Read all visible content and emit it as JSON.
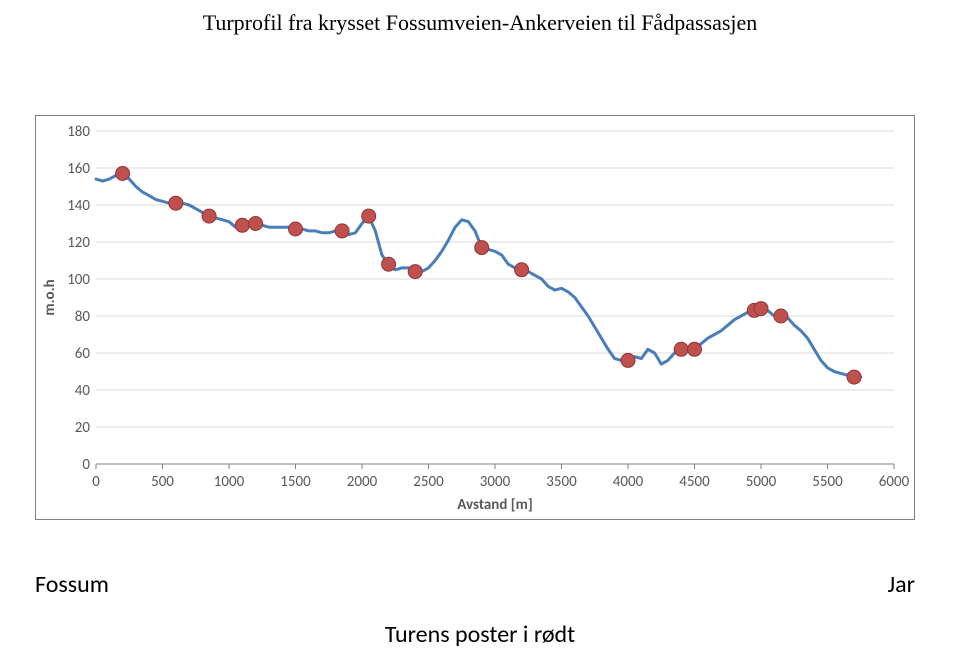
{
  "title": "Turprofil fra krysset Fossumveien-Ankerveien til Fådpassasjen",
  "left_label": "Fossum",
  "right_label": "Jar",
  "poster_label": "Turens poster i rødt",
  "chart": {
    "type": "line",
    "xlabel": "Avstand [m]",
    "ylabel": "m.o.h",
    "xlim": [
      0,
      6000
    ],
    "ylim": [
      0,
      180
    ],
    "xtick_step": 500,
    "ytick_step": 20,
    "background_color": "#ffffff",
    "grid_color": "#d9d9d9",
    "axis_color": "#808080",
    "tick_font_size": 15,
    "tick_font_family": "Calibri, Arial, sans-serif",
    "tick_color": "#595959",
    "axis_label_font_size": 15,
    "axis_label_font_weight": "bold",
    "line_color": "#4a7ebb",
    "line_width": 3,
    "marker_fill": "#c0504d",
    "marker_stroke": "#8c3836",
    "marker_radius": 7,
    "line_data": [
      [
        0,
        154
      ],
      [
        50,
        153
      ],
      [
        100,
        154
      ],
      [
        150,
        156
      ],
      [
        200,
        157
      ],
      [
        250,
        154
      ],
      [
        300,
        150
      ],
      [
        350,
        147
      ],
      [
        400,
        145
      ],
      [
        450,
        143
      ],
      [
        500,
        142
      ],
      [
        550,
        141
      ],
      [
        600,
        141
      ],
      [
        650,
        141
      ],
      [
        700,
        140
      ],
      [
        750,
        138
      ],
      [
        800,
        136
      ],
      [
        850,
        134
      ],
      [
        900,
        133
      ],
      [
        950,
        132
      ],
      [
        1000,
        131
      ],
      [
        1050,
        128
      ],
      [
        1100,
        129
      ],
      [
        1150,
        131
      ],
      [
        1200,
        130
      ],
      [
        1250,
        129
      ],
      [
        1300,
        128
      ],
      [
        1350,
        128
      ],
      [
        1400,
        128
      ],
      [
        1450,
        128
      ],
      [
        1500,
        127
      ],
      [
        1550,
        127
      ],
      [
        1600,
        126
      ],
      [
        1650,
        126
      ],
      [
        1700,
        125
      ],
      [
        1750,
        125
      ],
      [
        1800,
        126
      ],
      [
        1850,
        126
      ],
      [
        1900,
        124
      ],
      [
        1950,
        125
      ],
      [
        2000,
        130
      ],
      [
        2050,
        134
      ],
      [
        2100,
        126
      ],
      [
        2150,
        113
      ],
      [
        2200,
        108
      ],
      [
        2250,
        105
      ],
      [
        2300,
        106
      ],
      [
        2350,
        106
      ],
      [
        2400,
        104
      ],
      [
        2450,
        104
      ],
      [
        2500,
        106
      ],
      [
        2550,
        110
      ],
      [
        2600,
        115
      ],
      [
        2650,
        121
      ],
      [
        2700,
        128
      ],
      [
        2750,
        132
      ],
      [
        2800,
        131
      ],
      [
        2850,
        126
      ],
      [
        2900,
        117
      ],
      [
        2950,
        116
      ],
      [
        3000,
        115
      ],
      [
        3050,
        113
      ],
      [
        3100,
        108
      ],
      [
        3150,
        106
      ],
      [
        3200,
        105
      ],
      [
        3250,
        104
      ],
      [
        3300,
        102
      ],
      [
        3350,
        100
      ],
      [
        3400,
        96
      ],
      [
        3450,
        94
      ],
      [
        3500,
        95
      ],
      [
        3550,
        93
      ],
      [
        3600,
        90
      ],
      [
        3650,
        85
      ],
      [
        3700,
        80
      ],
      [
        3750,
        74
      ],
      [
        3800,
        68
      ],
      [
        3850,
        62
      ],
      [
        3900,
        57
      ],
      [
        3950,
        56
      ],
      [
        4000,
        56
      ],
      [
        4050,
        58
      ],
      [
        4100,
        57
      ],
      [
        4150,
        62
      ],
      [
        4200,
        60
      ],
      [
        4250,
        54
      ],
      [
        4300,
        56
      ],
      [
        4350,
        60
      ],
      [
        4400,
        62
      ],
      [
        4450,
        62
      ],
      [
        4500,
        62
      ],
      [
        4550,
        65
      ],
      [
        4600,
        68
      ],
      [
        4650,
        70
      ],
      [
        4700,
        72
      ],
      [
        4750,
        75
      ],
      [
        4800,
        78
      ],
      [
        4850,
        80
      ],
      [
        4900,
        82
      ],
      [
        4950,
        83
      ],
      [
        5000,
        84
      ],
      [
        5050,
        83
      ],
      [
        5100,
        80
      ],
      [
        5150,
        80
      ],
      [
        5200,
        79
      ],
      [
        5250,
        75
      ],
      [
        5300,
        72
      ],
      [
        5350,
        68
      ],
      [
        5400,
        62
      ],
      [
        5450,
        56
      ],
      [
        5500,
        52
      ],
      [
        5550,
        50
      ],
      [
        5600,
        49
      ],
      [
        5650,
        48
      ],
      [
        5700,
        47
      ],
      [
        5750,
        47
      ]
    ],
    "markers": [
      [
        200,
        157
      ],
      [
        600,
        141
      ],
      [
        850,
        134
      ],
      [
        1100,
        129
      ],
      [
        1200,
        130
      ],
      [
        1500,
        127
      ],
      [
        1850,
        126
      ],
      [
        2050,
        134
      ],
      [
        2200,
        108
      ],
      [
        2400,
        104
      ],
      [
        2900,
        117
      ],
      [
        3200,
        105
      ],
      [
        4000,
        56
      ],
      [
        4400,
        62
      ],
      [
        4500,
        62
      ],
      [
        4950,
        83
      ],
      [
        5000,
        84
      ],
      [
        5150,
        80
      ],
      [
        5700,
        47
      ]
    ]
  }
}
